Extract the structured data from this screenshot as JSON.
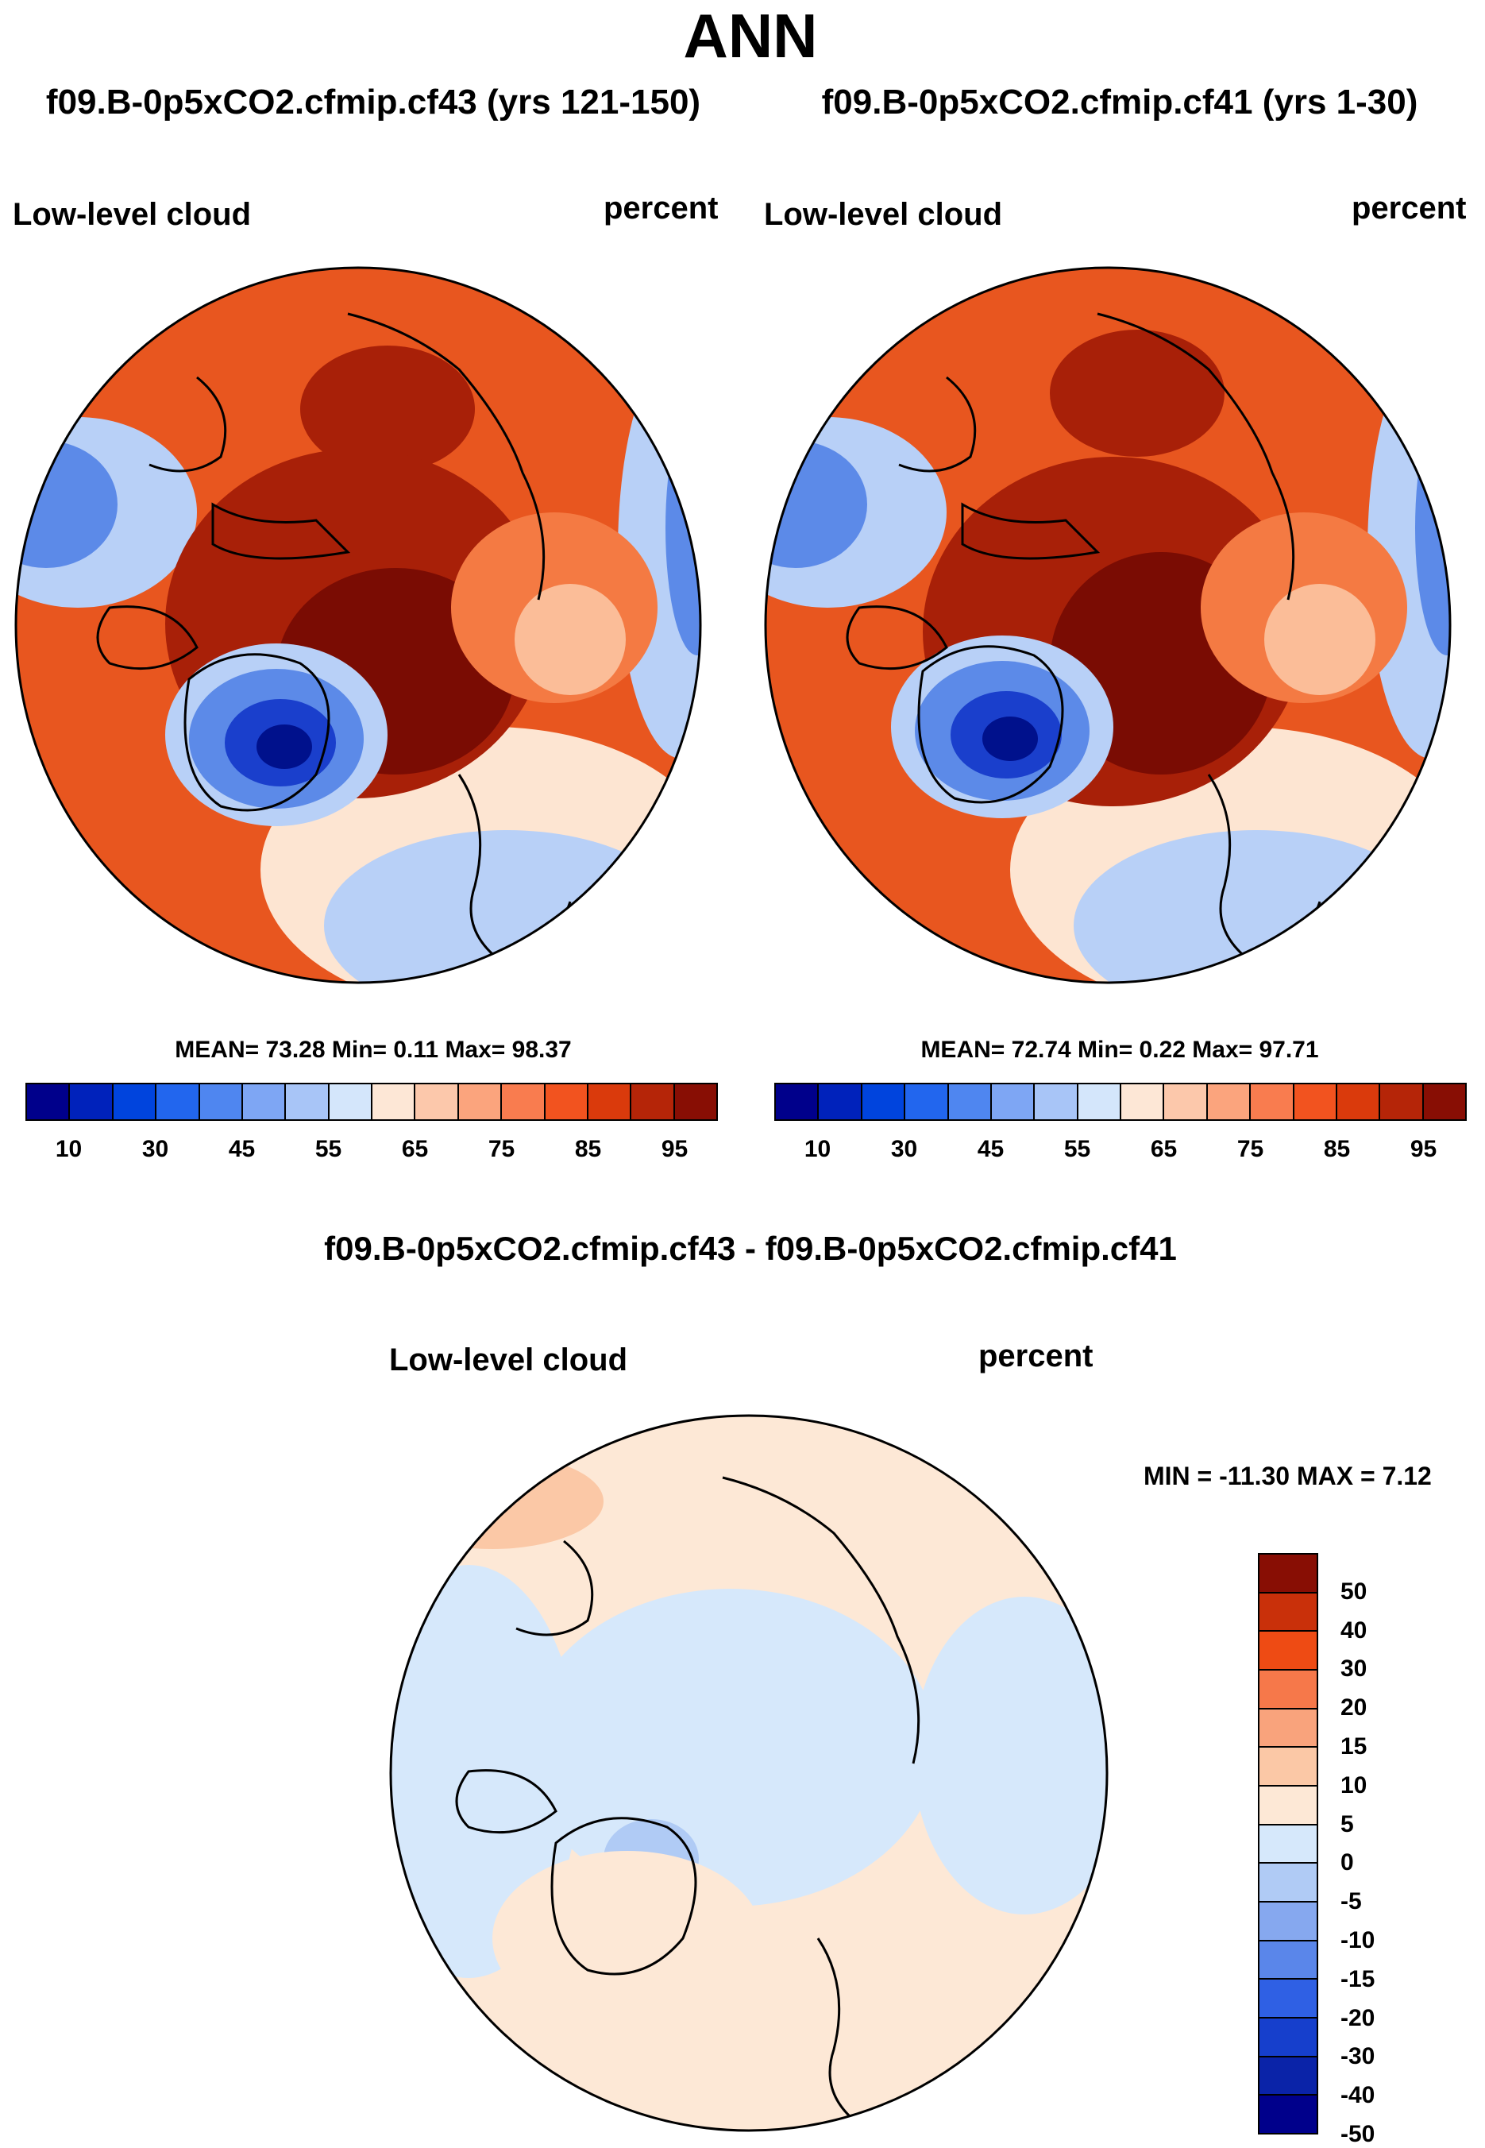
{
  "figure": {
    "main_title": "ANN",
    "difference_title": "f09.B-0p5xCO2.cfmip.cf43 - f09.B-0p5xCO2.cfmip.cf41"
  },
  "panels": [
    {
      "case_title": "f09.B-0p5xCO2.cfmip.cf43 (yrs 121-150)",
      "variable": "Low-level cloud",
      "units": "percent",
      "stats": "MEAN=  73.28  Min=    0.11  Max=  98.37"
    },
    {
      "case_title": "f09.B-0p5xCO2.cfmip.cf41 (yrs 1-30)",
      "variable": "Low-level cloud",
      "units": "percent",
      "stats": "MEAN=  72.74  Min=    0.22  Max=  97.71"
    },
    {
      "variable": "Low-level cloud",
      "units": "percent",
      "stats": "MIN = -11.30 MAX =    7.12"
    }
  ],
  "colorbar_abs": {
    "colors": [
      "#00008b",
      "#0022bb",
      "#0044dd",
      "#2266ee",
      "#4f86f0",
      "#7ea6f4",
      "#a8c5f7",
      "#d4e6fb",
      "#fde7d6",
      "#fcc8ab",
      "#fba47d",
      "#f97c4f",
      "#f2531f",
      "#da3a0c",
      "#b52508",
      "#880e04"
    ],
    "labels": [
      "10",
      "30",
      "45",
      "55",
      "65",
      "75",
      "85",
      "95"
    ]
  },
  "colorbar_diff": {
    "colors": [
      "#880e04",
      "#c9300a",
      "#ee4b14",
      "#f6784a",
      "#f9a37c",
      "#fbc8a6",
      "#fde8d6",
      "#d6e8fb",
      "#b0cbf5",
      "#86a8ef",
      "#5a86ea",
      "#2f60e4",
      "#163fcc",
      "#0a23a8",
      "#00008b"
    ],
    "labels": [
      "50",
      "40",
      "30",
      "20",
      "15",
      "10",
      "5",
      "0",
      "-5",
      "-10",
      "-15",
      "-20",
      "-30",
      "-40",
      "-50"
    ]
  },
  "map_colors": {
    "abs_base": "#e8561f",
    "abs_dark": "#a82008",
    "abs_darkest": "#7a0c03",
    "abs_mid": "#f47a43",
    "abs_light": "#fbbd98",
    "abs_pale": "#fde5d2",
    "abs_blue_light": "#b8d0f7",
    "abs_blue": "#5c8ae8",
    "abs_blue_dark": "#1a3fcc",
    "abs_blue_darkest": "#00118c",
    "diff_base": "#fde8d6",
    "diff_neg": "#d6e8fb",
    "diff_neg2": "#b0cbf5",
    "diff_pos": "#fbc8a6"
  }
}
